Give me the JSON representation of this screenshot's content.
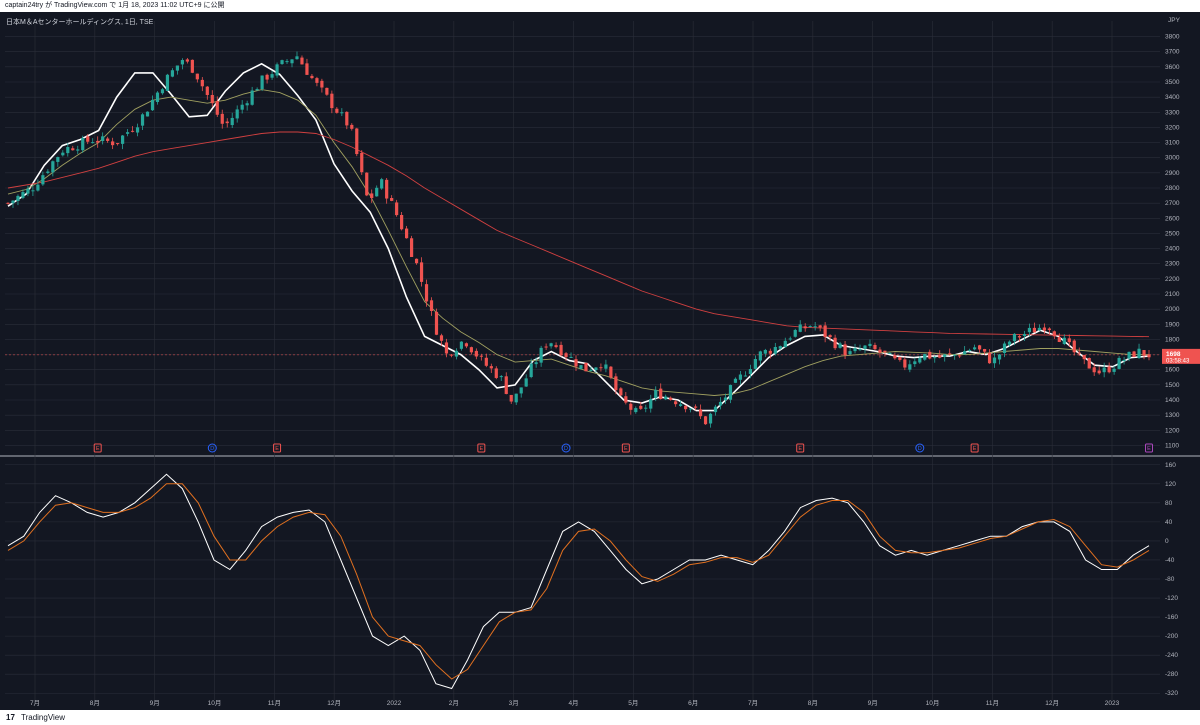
{
  "header": {
    "published_text": "captain24try が TradingView.com で 1月 18, 2023 11:02 UTC+9 に公開"
  },
  "footer": {
    "brand": "TradingView",
    "logo_glyph": "17"
  },
  "colors": {
    "background": "#131722",
    "grid": "#2a2e39",
    "axis_text": "#b2b5be",
    "up_candle": "#26a69a",
    "down_candle": "#ef5350",
    "ma_short": "#ffffff",
    "ma_mid": "#a0a060",
    "ma_long": "#d04040",
    "osc_fast": "#ffffff",
    "osc_slow": "#e07020",
    "price_label_bg": "#ef5350"
  },
  "chart_data": [
    {
      "type": "candlestick",
      "title": "日本M＆Aセンターホールディングス, 1日, TSE",
      "currency": "JPY",
      "ylim": [
        1050,
        3850
      ],
      "y_ticks": [
        1100,
        1200,
        1300,
        1400,
        1500,
        1600,
        1700,
        1800,
        1900,
        2000,
        2100,
        2200,
        2300,
        2400,
        2500,
        2600,
        2700,
        2800,
        2900,
        3000,
        3100,
        3200,
        3300,
        3400,
        3500,
        3600,
        3700,
        3800
      ],
      "x_tick_labels": [
        "7月",
        "8月",
        "9月",
        "10月",
        "11月",
        "12月",
        "2022",
        "2月",
        "3月",
        "4月",
        "5月",
        "6月",
        "7月",
        "8月",
        "9月",
        "10月",
        "11月",
        "12月",
        "2023"
      ],
      "last_price": 1698,
      "countdown": "03:58:43",
      "close_series_approx": [
        {
          "t": 0,
          "v": 2700
        },
        {
          "t": 4,
          "v": 2800
        },
        {
          "t": 9,
          "v": 3050
        },
        {
          "t": 14,
          "v": 3120
        },
        {
          "t": 18,
          "v": 3100
        },
        {
          "t": 22,
          "v": 3250
        },
        {
          "t": 26,
          "v": 3500
        },
        {
          "t": 29,
          "v": 3650
        },
        {
          "t": 31,
          "v": 3580
        },
        {
          "t": 34,
          "v": 3350
        },
        {
          "t": 36,
          "v": 3200
        },
        {
          "t": 39,
          "v": 3350
        },
        {
          "t": 42,
          "v": 3500
        },
        {
          "t": 45,
          "v": 3600
        },
        {
          "t": 48,
          "v": 3680
        },
        {
          "t": 51,
          "v": 3500
        },
        {
          "t": 54,
          "v": 3350
        },
        {
          "t": 57,
          "v": 3200
        },
        {
          "t": 60,
          "v": 2700
        },
        {
          "t": 62,
          "v": 2850
        },
        {
          "t": 65,
          "v": 2600
        },
        {
          "t": 68,
          "v": 2300
        },
        {
          "t": 71,
          "v": 1900
        },
        {
          "t": 73,
          "v": 1700
        },
        {
          "t": 76,
          "v": 1800
        },
        {
          "t": 79,
          "v": 1650
        },
        {
          "t": 82,
          "v": 1550
        },
        {
          "t": 84,
          "v": 1380
        },
        {
          "t": 87,
          "v": 1600
        },
        {
          "t": 90,
          "v": 1800
        },
        {
          "t": 93,
          "v": 1700
        },
        {
          "t": 96,
          "v": 1600
        },
        {
          "t": 99,
          "v": 1650
        },
        {
          "t": 102,
          "v": 1400
        },
        {
          "t": 105,
          "v": 1300
        },
        {
          "t": 108,
          "v": 1450
        },
        {
          "t": 111,
          "v": 1400
        },
        {
          "t": 114,
          "v": 1350
        },
        {
          "t": 116,
          "v": 1250
        },
        {
          "t": 119,
          "v": 1400
        },
        {
          "t": 122,
          "v": 1550
        },
        {
          "t": 125,
          "v": 1700
        },
        {
          "t": 128,
          "v": 1750
        },
        {
          "t": 131,
          "v": 1850
        },
        {
          "t": 134,
          "v": 1900
        },
        {
          "t": 137,
          "v": 1800
        },
        {
          "t": 140,
          "v": 1700
        },
        {
          "t": 143,
          "v": 1750
        },
        {
          "t": 146,
          "v": 1700
        },
        {
          "t": 149,
          "v": 1620
        },
        {
          "t": 152,
          "v": 1700
        },
        {
          "t": 155,
          "v": 1680
        },
        {
          "t": 158,
          "v": 1700
        },
        {
          "t": 161,
          "v": 1750
        },
        {
          "t": 164,
          "v": 1650
        },
        {
          "t": 167,
          "v": 1800
        },
        {
          "t": 170,
          "v": 1850
        },
        {
          "t": 173,
          "v": 1900
        },
        {
          "t": 176,
          "v": 1780
        },
        {
          "t": 179,
          "v": 1650
        },
        {
          "t": 182,
          "v": 1580
        },
        {
          "t": 185,
          "v": 1650
        },
        {
          "t": 188,
          "v": 1720
        },
        {
          "t": 190,
          "v": 1698
        }
      ],
      "series": [
        {
          "values": [
            2680,
            2760,
            2950,
            3080,
            3120,
            3180,
            3400,
            3560,
            3560,
            3420,
            3270,
            3280,
            3440,
            3560,
            3620,
            3550,
            3410,
            3250,
            2960,
            2780,
            2640,
            2400,
            2080,
            1820,
            1760,
            1700,
            1600,
            1480,
            1500,
            1660,
            1720,
            1660,
            1640,
            1520,
            1400,
            1380,
            1420,
            1400,
            1330,
            1330,
            1440,
            1560,
            1680,
            1760,
            1820,
            1830,
            1760,
            1740,
            1720,
            1690,
            1680,
            1690,
            1690,
            1720,
            1700,
            1740,
            1800,
            1860,
            1820,
            1720,
            1630,
            1620,
            1680,
            1690
          ]
        },
        {
          "values": [
            2760,
            2790,
            2860,
            2950,
            3030,
            3100,
            3220,
            3320,
            3380,
            3400,
            3380,
            3360,
            3380,
            3420,
            3450,
            3430,
            3380,
            3280,
            3100,
            2940,
            2750,
            2520,
            2280,
            2050,
            1940,
            1850,
            1780,
            1700,
            1650,
            1660,
            1670,
            1630,
            1590,
            1560,
            1520,
            1480,
            1460,
            1450,
            1440,
            1430,
            1440,
            1470,
            1520,
            1570,
            1620,
            1660,
            1690,
            1700,
            1710,
            1720,
            1715,
            1710,
            1700,
            1700,
            1710,
            1720,
            1730,
            1740,
            1740,
            1730,
            1720,
            1710,
            1700,
            1700
          ]
        },
        {
          "values": [
            2800,
            2820,
            2840,
            2870,
            2900,
            2930,
            2970,
            3010,
            3040,
            3060,
            3080,
            3100,
            3120,
            3140,
            3160,
            3170,
            3170,
            3160,
            3120,
            3070,
            3010,
            2950,
            2880,
            2800,
            2730,
            2660,
            2590,
            2520,
            2470,
            2420,
            2370,
            2320,
            2270,
            2220,
            2170,
            2120,
            2080,
            2040,
            2000,
            1970,
            1950,
            1930,
            1910,
            1890,
            1880,
            1875,
            1870,
            1865,
            1860,
            1855,
            1850,
            1845,
            1840,
            1838,
            1836,
            1834,
            1832,
            1830,
            1828,
            1826,
            1824,
            1822,
            1820,
            1818
          ]
        }
      ],
      "event_markers": [
        {
          "t": 18,
          "kind": "E",
          "color": "#ef5350"
        },
        {
          "t": 41,
          "kind": "D",
          "color": "#2962ff"
        },
        {
          "t": 54,
          "kind": "E",
          "color": "#ef5350"
        },
        {
          "t": 95,
          "kind": "E",
          "color": "#ef5350"
        },
        {
          "t": 112,
          "kind": "D",
          "color": "#2962ff"
        },
        {
          "t": 124,
          "kind": "E",
          "color": "#ef5350"
        },
        {
          "t": 159,
          "kind": "E",
          "color": "#ef5350"
        },
        {
          "t": 183,
          "kind": "D",
          "color": "#2962ff"
        },
        {
          "t": 194,
          "kind": "E",
          "color": "#ef5350"
        },
        {
          "t": 229,
          "kind": "E",
          "color": "#ab47bc"
        }
      ]
    },
    {
      "type": "line",
      "ylim": [
        -330,
        170
      ],
      "y_ticks": [
        160,
        120,
        80,
        40,
        0,
        -40,
        -80,
        -120,
        -160,
        -200,
        -240,
        -280,
        -320
      ],
      "series": [
        {
          "values": [
            -10,
            10,
            60,
            95,
            80,
            60,
            50,
            60,
            80,
            110,
            140,
            110,
            40,
            -40,
            -60,
            -20,
            30,
            50,
            60,
            65,
            40,
            -40,
            -120,
            -200,
            -220,
            -200,
            -230,
            -300,
            -310,
            -250,
            -180,
            -150,
            -150,
            -140,
            -60,
            20,
            40,
            20,
            -20,
            -60,
            -90,
            -80,
            -60,
            -40,
            -40,
            -30,
            -40,
            -50,
            -20,
            20,
            70,
            85,
            90,
            80,
            40,
            -10,
            -30,
            -20,
            -30,
            -20,
            -10,
            0,
            10,
            10,
            30,
            40,
            40,
            20,
            -40,
            -60,
            -60,
            -30,
            -10
          ]
        },
        {
          "values": [
            -20,
            0,
            40,
            75,
            80,
            70,
            60,
            60,
            70,
            90,
            120,
            120,
            80,
            10,
            -40,
            -40,
            0,
            30,
            50,
            60,
            55,
            10,
            -70,
            -160,
            -200,
            -210,
            -220,
            -260,
            -290,
            -270,
            -220,
            -170,
            -150,
            -145,
            -100,
            -20,
            20,
            25,
            0,
            -40,
            -75,
            -85,
            -70,
            -50,
            -45,
            -35,
            -35,
            -45,
            -30,
            10,
            50,
            75,
            85,
            85,
            60,
            10,
            -20,
            -25,
            -25,
            -20,
            -15,
            -5,
            5,
            10,
            25,
            40,
            45,
            30,
            -10,
            -50,
            -55,
            -40,
            -20
          ]
        }
      ]
    }
  ]
}
